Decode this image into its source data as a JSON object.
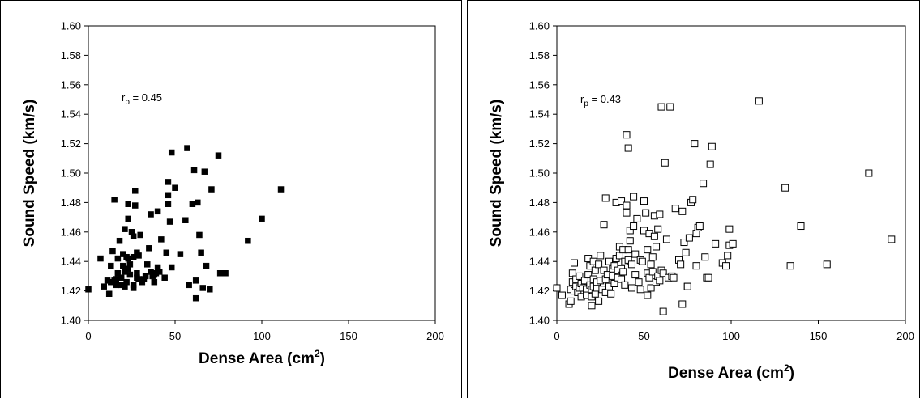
{
  "chart_data": [
    {
      "type": "scatter",
      "xlabel": "Dense Area (cm",
      "xlabel_sup": "2",
      "xlabel_tail": ")",
      "ylabel": "Sound Speed (km/s)",
      "xlim": [
        0,
        200
      ],
      "ylim": [
        1.4,
        1.6
      ],
      "xticks": [
        "0",
        "50",
        "100",
        "150",
        "200"
      ],
      "yticks": [
        "1.40",
        "1.42",
        "1.44",
        "1.46",
        "1.48",
        "1.50",
        "1.52",
        "1.54",
        "1.56",
        "1.58",
        "1.60"
      ],
      "annotation": {
        "prefix": "r",
        "sub": "p",
        "suffix": " = 0.45"
      },
      "marker": "filled-square",
      "grid": false,
      "points": [
        [
          0,
          1.421
        ],
        [
          7,
          1.442
        ],
        [
          9,
          1.423
        ],
        [
          11,
          1.427
        ],
        [
          12,
          1.418
        ],
        [
          13,
          1.426
        ],
        [
          13,
          1.437
        ],
        [
          14,
          1.447
        ],
        [
          15,
          1.427
        ],
        [
          15,
          1.482
        ],
        [
          16,
          1.424
        ],
        [
          16,
          1.428
        ],
        [
          17,
          1.432
        ],
        [
          17,
          1.442
        ],
        [
          18,
          1.454
        ],
        [
          19,
          1.429
        ],
        [
          19,
          1.424
        ],
        [
          20,
          1.445
        ],
        [
          20,
          1.437
        ],
        [
          21,
          1.423
        ],
        [
          21,
          1.433
        ],
        [
          21,
          1.462
        ],
        [
          22,
          1.426
        ],
        [
          22,
          1.443
        ],
        [
          23,
          1.435
        ],
        [
          23,
          1.442
        ],
        [
          23,
          1.469
        ],
        [
          23,
          1.479
        ],
        [
          24,
          1.438
        ],
        [
          24,
          1.431
        ],
        [
          25,
          1.46
        ],
        [
          26,
          1.424
        ],
        [
          26,
          1.422
        ],
        [
          26,
          1.457
        ],
        [
          26,
          1.443
        ],
        [
          27,
          1.488
        ],
        [
          27,
          1.478
        ],
        [
          28,
          1.432
        ],
        [
          28,
          1.429
        ],
        [
          28,
          1.446
        ],
        [
          29,
          1.444
        ],
        [
          29,
          1.428
        ],
        [
          30,
          1.458
        ],
        [
          31,
          1.426
        ],
        [
          32,
          1.428
        ],
        [
          33,
          1.43
        ],
        [
          34,
          1.438
        ],
        [
          35,
          1.449
        ],
        [
          36,
          1.472
        ],
        [
          36,
          1.433
        ],
        [
          37,
          1.43
        ],
        [
          38,
          1.426
        ],
        [
          38,
          1.431
        ],
        [
          39,
          1.432
        ],
        [
          40,
          1.474
        ],
        [
          40,
          1.436
        ],
        [
          41,
          1.433
        ],
        [
          42,
          1.455
        ],
        [
          44,
          1.429
        ],
        [
          45,
          1.446
        ],
        [
          46,
          1.485
        ],
        [
          46,
          1.494
        ],
        [
          46,
          1.479
        ],
        [
          47,
          1.467
        ],
        [
          48,
          1.514
        ],
        [
          48,
          1.436
        ],
        [
          50,
          1.49
        ],
        [
          53,
          1.445
        ],
        [
          56,
          1.468
        ],
        [
          57,
          1.517
        ],
        [
          58,
          1.424
        ],
        [
          60,
          1.479
        ],
        [
          61,
          1.502
        ],
        [
          62,
          1.415
        ],
        [
          62,
          1.427
        ],
        [
          63,
          1.48
        ],
        [
          64,
          1.458
        ],
        [
          65,
          1.446
        ],
        [
          66,
          1.422
        ],
        [
          67,
          1.501
        ],
        [
          68,
          1.437
        ],
        [
          70,
          1.421
        ],
        [
          71,
          1.489
        ],
        [
          75,
          1.512
        ],
        [
          76,
          1.432
        ],
        [
          79,
          1.432
        ],
        [
          92,
          1.454
        ],
        [
          100,
          1.469
        ],
        [
          111,
          1.489
        ]
      ]
    },
    {
      "type": "scatter",
      "xlabel": "Dense Area (cm",
      "xlabel_sup": "2",
      "xlabel_tail": ")",
      "ylabel": "Sound Speed (km/s)",
      "xlim": [
        0,
        200
      ],
      "ylim": [
        1.4,
        1.6
      ],
      "xticks": [
        "0",
        "50",
        "100",
        "150",
        "200"
      ],
      "yticks": [
        "1.40",
        "1.42",
        "1.44",
        "1.46",
        "1.48",
        "1.50",
        "1.52",
        "1.54",
        "1.56",
        "1.58",
        "1.60"
      ],
      "annotation": {
        "prefix": "r",
        "sub": "p",
        "suffix": " = 0.43"
      },
      "marker": "open-square",
      "grid": false,
      "points": [
        [
          0,
          1.422
        ],
        [
          3,
          1.417
        ],
        [
          7,
          1.411
        ],
        [
          8,
          1.413
        ],
        [
          8,
          1.421
        ],
        [
          9,
          1.426
        ],
        [
          9,
          1.432
        ],
        [
          10,
          1.439
        ],
        [
          10,
          1.42
        ],
        [
          11,
          1.428
        ],
        [
          11,
          1.423
        ],
        [
          12,
          1.419
        ],
        [
          13,
          1.422
        ],
        [
          13,
          1.43
        ],
        [
          14,
          1.416
        ],
        [
          14,
          1.425
        ],
        [
          15,
          1.422
        ],
        [
          16,
          1.427
        ],
        [
          17,
          1.421
        ],
        [
          17,
          1.417
        ],
        [
          18,
          1.431
        ],
        [
          18,
          1.442
        ],
        [
          19,
          1.424
        ],
        [
          19,
          1.437
        ],
        [
          20,
          1.41
        ],
        [
          20,
          1.421
        ],
        [
          20,
          1.416
        ],
        [
          21,
          1.428
        ],
        [
          21,
          1.423
        ],
        [
          21,
          1.44
        ],
        [
          22,
          1.434
        ],
        [
          22,
          1.418
        ],
        [
          23,
          1.422
        ],
        [
          23,
          1.426
        ],
        [
          24,
          1.413
        ],
        [
          24,
          1.438
        ],
        [
          25,
          1.444
        ],
        [
          25,
          1.427
        ],
        [
          26,
          1.421
        ],
        [
          27,
          1.465
        ],
        [
          27,
          1.434
        ],
        [
          28,
          1.419
        ],
        [
          28,
          1.428
        ],
        [
          28,
          1.483
        ],
        [
          29,
          1.431
        ],
        [
          30,
          1.44
        ],
        [
          30,
          1.423
        ],
        [
          31,
          1.418
        ],
        [
          32,
          1.43
        ],
        [
          32,
          1.435
        ],
        [
          33,
          1.425
        ],
        [
          33,
          1.437
        ],
        [
          34,
          1.442
        ],
        [
          34,
          1.48
        ],
        [
          35,
          1.429
        ],
        [
          35,
          1.434
        ],
        [
          36,
          1.444
        ],
        [
          36,
          1.45
        ],
        [
          37,
          1.435
        ],
        [
          37,
          1.428
        ],
        [
          37,
          1.481
        ],
        [
          38,
          1.433
        ],
        [
          38,
          1.448
        ],
        [
          39,
          1.424
        ],
        [
          39,
          1.44
        ],
        [
          40,
          1.526
        ],
        [
          40,
          1.473
        ],
        [
          40,
          1.478
        ],
        [
          41,
          1.441
        ],
        [
          41,
          1.517
        ],
        [
          41,
          1.448
        ],
        [
          42,
          1.454
        ],
        [
          42,
          1.461
        ],
        [
          43,
          1.438
        ],
        [
          43,
          1.422
        ],
        [
          44,
          1.464
        ],
        [
          44,
          1.484
        ],
        [
          45,
          1.431
        ],
        [
          45,
          1.445
        ],
        [
          46,
          1.469
        ],
        [
          47,
          1.426
        ],
        [
          48,
          1.441
        ],
        [
          48,
          1.421
        ],
        [
          49,
          1.44
        ],
        [
          50,
          1.481
        ],
        [
          50,
          1.461
        ],
        [
          51,
          1.473
        ],
        [
          52,
          1.448
        ],
        [
          52,
          1.432
        ],
        [
          52,
          1.417
        ],
        [
          53,
          1.459
        ],
        [
          53,
          1.429
        ],
        [
          54,
          1.422
        ],
        [
          54,
          1.438
        ],
        [
          55,
          1.433
        ],
        [
          55,
          1.443
        ],
        [
          56,
          1.471
        ],
        [
          56,
          1.457
        ],
        [
          57,
          1.45
        ],
        [
          57,
          1.426
        ],
        [
          58,
          1.43
        ],
        [
          58,
          1.462
        ],
        [
          59,
          1.472
        ],
        [
          59,
          1.427
        ],
        [
          60,
          1.545
        ],
        [
          60,
          1.434
        ],
        [
          61,
          1.406
        ],
        [
          61,
          1.432
        ],
        [
          62,
          1.507
        ],
        [
          63,
          1.455
        ],
        [
          64,
          1.429
        ],
        [
          65,
          1.545
        ],
        [
          66,
          1.43
        ],
        [
          67,
          1.429
        ],
        [
          68,
          1.476
        ],
        [
          70,
          1.441
        ],
        [
          71,
          1.438
        ],
        [
          72,
          1.411
        ],
        [
          72,
          1.474
        ],
        [
          73,
          1.453
        ],
        [
          74,
          1.446
        ],
        [
          75,
          1.423
        ],
        [
          75,
          1.423
        ],
        [
          76,
          1.456
        ],
        [
          77,
          1.48
        ],
        [
          78,
          1.482
        ],
        [
          79,
          1.52
        ],
        [
          80,
          1.437
        ],
        [
          80,
          1.459
        ],
        [
          81,
          1.463
        ],
        [
          82,
          1.464
        ],
        [
          84,
          1.493
        ],
        [
          85,
          1.443
        ],
        [
          86,
          1.429
        ],
        [
          87,
          1.429
        ],
        [
          88,
          1.506
        ],
        [
          89,
          1.518
        ],
        [
          91,
          1.452
        ],
        [
          95,
          1.439
        ],
        [
          97,
          1.437
        ],
        [
          98,
          1.444
        ],
        [
          99,
          1.451
        ],
        [
          99,
          1.462
        ],
        [
          101,
          1.452
        ],
        [
          116,
          1.549
        ],
        [
          131,
          1.49
        ],
        [
          134,
          1.437
        ],
        [
          140,
          1.464
        ],
        [
          155,
          1.438
        ],
        [
          179,
          1.5
        ],
        [
          192,
          1.455
        ]
      ]
    }
  ]
}
